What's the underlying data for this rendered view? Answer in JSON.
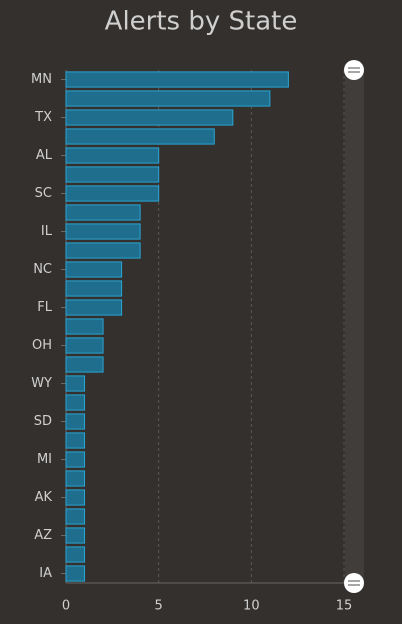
{
  "chart_data": {
    "type": "bar",
    "orientation": "horizontal",
    "title": "Alerts by State",
    "categories": [
      "MN",
      null,
      "TX",
      null,
      "AL",
      null,
      "SC",
      null,
      "IL",
      null,
      "NC",
      null,
      "FL",
      null,
      "OH",
      null,
      "WY",
      null,
      "SD",
      null,
      "MI",
      null,
      "AK",
      null,
      "AZ",
      null,
      "IA"
    ],
    "values": [
      12,
      11,
      9,
      8,
      5,
      5,
      5,
      4,
      4,
      4,
      3,
      3,
      3,
      2,
      2,
      2,
      1,
      1,
      1,
      1,
      1,
      1,
      1,
      1,
      1,
      1,
      1
    ],
    "color": "#1f6e8e",
    "xlim": [
      0,
      15
    ],
    "xticks": [
      0,
      5,
      10,
      15
    ],
    "grid": true
  }
}
